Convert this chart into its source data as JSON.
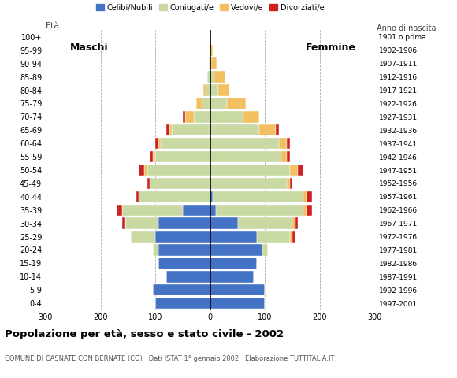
{
  "age_groups": [
    "0-4",
    "5-9",
    "10-14",
    "15-19",
    "20-24",
    "25-29",
    "30-34",
    "35-39",
    "40-44",
    "45-49",
    "50-54",
    "55-59",
    "60-64",
    "65-69",
    "70-74",
    "75-79",
    "80-84",
    "85-89",
    "90-94",
    "95-99",
    "100+"
  ],
  "birth_years": [
    "1997-2001",
    "1992-1996",
    "1987-1991",
    "1982-1986",
    "1977-1981",
    "1972-1976",
    "1967-1971",
    "1962-1966",
    "1957-1961",
    "1952-1956",
    "1947-1951",
    "1942-1946",
    "1937-1941",
    "1932-1936",
    "1927-1931",
    "1922-1926",
    "1917-1921",
    "1912-1916",
    "1907-1911",
    "1902-1906",
    "1901 o prima"
  ],
  "males": {
    "celibi": [
      100,
      105,
      80,
      95,
      95,
      100,
      95,
      50,
      0,
      0,
      0,
      0,
      0,
      0,
      0,
      0,
      0,
      0,
      0,
      0,
      0
    ],
    "coniugati": [
      0,
      0,
      0,
      0,
      10,
      45,
      60,
      110,
      130,
      110,
      115,
      100,
      90,
      70,
      30,
      15,
      8,
      5,
      2,
      0,
      0
    ],
    "vedovi": [
      0,
      0,
      0,
      0,
      0,
      0,
      0,
      0,
      0,
      0,
      5,
      5,
      5,
      5,
      15,
      10,
      5,
      0,
      0,
      0,
      0
    ],
    "divorziati": [
      0,
      0,
      0,
      0,
      0,
      0,
      5,
      10,
      5,
      5,
      10,
      5,
      5,
      5,
      5,
      0,
      0,
      0,
      0,
      0,
      0
    ]
  },
  "females": {
    "nubili": [
      100,
      100,
      80,
      85,
      95,
      85,
      50,
      10,
      5,
      0,
      0,
      0,
      0,
      0,
      0,
      0,
      0,
      0,
      0,
      0,
      0
    ],
    "coniugate": [
      0,
      0,
      0,
      0,
      10,
      60,
      100,
      160,
      165,
      140,
      145,
      130,
      125,
      90,
      60,
      30,
      15,
      8,
      2,
      0,
      0
    ],
    "vedove": [
      0,
      0,
      0,
      0,
      0,
      5,
      5,
      5,
      5,
      5,
      15,
      10,
      15,
      30,
      30,
      35,
      20,
      20,
      10,
      5,
      0
    ],
    "divorziate": [
      0,
      0,
      0,
      0,
      0,
      5,
      5,
      10,
      10,
      5,
      10,
      5,
      5,
      5,
      0,
      0,
      0,
      0,
      0,
      0,
      0
    ]
  },
  "colors": {
    "celibi_nubili": "#4472C4",
    "coniugati": "#C8D9A4",
    "vedovi": "#F2C060",
    "divorziati": "#CC2222"
  },
  "title": "Popolazione per età, sesso e stato civile - 2002",
  "subtitle": "COMUNE DI CASNATE CON BERNATE (CO) · Dati ISTAT 1° gennaio 2002 · Elaborazione TUTTITALIA.IT",
  "xlim": 300,
  "ylabel_left": "Età",
  "ylabel_right": "Anno di nascita",
  "legend_labels": [
    "Celibi/Nubili",
    "Coniugati/e",
    "Vedovi/e",
    "Divorziati/e"
  ],
  "label_maschi": "Maschi",
  "label_femmine": "Femmine"
}
